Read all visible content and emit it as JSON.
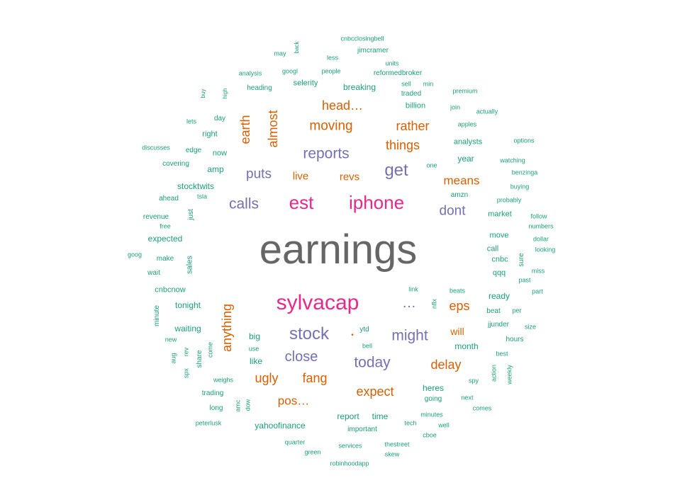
{
  "palette": {
    "gray": "#666666",
    "magenta": "#e7298a",
    "purple": "#7570b3",
    "orange": "#d95f02",
    "teal": "#1b9e77"
  },
  "words": [
    {
      "text": "earnings",
      "color": "gray"
    },
    {
      "text": "sylvacap",
      "color": "magenta"
    },
    {
      "text": "iphone",
      "color": "magenta"
    },
    {
      "text": "est",
      "color": "magenta"
    },
    {
      "text": "stock",
      "color": "purple"
    },
    {
      "text": "get",
      "color": "purple"
    },
    {
      "text": "reports",
      "color": "purple"
    },
    {
      "text": "calls",
      "color": "purple"
    },
    {
      "text": "puts",
      "color": "purple"
    },
    {
      "text": "close",
      "color": "purple"
    },
    {
      "text": "today",
      "color": "purple"
    },
    {
      "text": "might",
      "color": "purple"
    },
    {
      "text": "dont",
      "color": "purple"
    },
    {
      "text": "…",
      "color": "purple"
    },
    {
      "text": "moving",
      "color": "orange"
    },
    {
      "text": "head…",
      "color": "orange"
    },
    {
      "text": "rather",
      "color": "orange"
    },
    {
      "text": "things",
      "color": "orange"
    },
    {
      "text": "means",
      "color": "orange"
    },
    {
      "text": "almost",
      "color": "orange"
    },
    {
      "text": "earth",
      "color": "orange"
    },
    {
      "text": "anything",
      "color": "orange"
    },
    {
      "text": "live",
      "color": "orange"
    },
    {
      "text": "revs",
      "color": "orange"
    },
    {
      "text": "eps",
      "color": "orange"
    },
    {
      "text": "will",
      "color": "orange"
    },
    {
      "text": "delay",
      "color": "orange"
    },
    {
      "text": "expect",
      "color": "orange"
    },
    {
      "text": "ugly",
      "color": "orange"
    },
    {
      "text": "fang",
      "color": "orange"
    },
    {
      "text": "pos…",
      "color": "orange"
    },
    {
      "text": "•",
      "color": "orange"
    },
    {
      "text": "cnbcclosingbell",
      "color": "teal"
    },
    {
      "text": "jimcramer",
      "color": "teal"
    },
    {
      "text": "may",
      "color": "teal"
    },
    {
      "text": "back",
      "color": "teal"
    },
    {
      "text": "less",
      "color": "teal"
    },
    {
      "text": "units",
      "color": "teal"
    },
    {
      "text": "analysis",
      "color": "teal"
    },
    {
      "text": "googl",
      "color": "teal"
    },
    {
      "text": "people",
      "color": "teal"
    },
    {
      "text": "reformedbroker",
      "color": "teal"
    },
    {
      "text": "heading",
      "color": "teal"
    },
    {
      "text": "selerity",
      "color": "teal"
    },
    {
      "text": "breaking",
      "color": "teal"
    },
    {
      "text": "sell",
      "color": "teal"
    },
    {
      "text": "min",
      "color": "teal"
    },
    {
      "text": "buy",
      "color": "teal"
    },
    {
      "text": "high",
      "color": "teal"
    },
    {
      "text": "traded",
      "color": "teal"
    },
    {
      "text": "premium",
      "color": "teal"
    },
    {
      "text": "billion",
      "color": "teal"
    },
    {
      "text": "join",
      "color": "teal"
    },
    {
      "text": "actually",
      "color": "teal"
    },
    {
      "text": "lets",
      "color": "teal"
    },
    {
      "text": "day",
      "color": "teal"
    },
    {
      "text": "apples",
      "color": "teal"
    },
    {
      "text": "right",
      "color": "teal"
    },
    {
      "text": "analysts",
      "color": "teal"
    },
    {
      "text": "options",
      "color": "teal"
    },
    {
      "text": "discusses",
      "color": "teal"
    },
    {
      "text": "edge",
      "color": "teal"
    },
    {
      "text": "now",
      "color": "teal"
    },
    {
      "text": "year",
      "color": "teal"
    },
    {
      "text": "watching",
      "color": "teal"
    },
    {
      "text": "covering",
      "color": "teal"
    },
    {
      "text": "amp",
      "color": "teal"
    },
    {
      "text": "one",
      "color": "teal"
    },
    {
      "text": "benzinga",
      "color": "teal"
    },
    {
      "text": "stocktwits",
      "color": "teal"
    },
    {
      "text": "buying",
      "color": "teal"
    },
    {
      "text": "ahead",
      "color": "teal"
    },
    {
      "text": "tsla",
      "color": "teal"
    },
    {
      "text": "amzn",
      "color": "teal"
    },
    {
      "text": "probably",
      "color": "teal"
    },
    {
      "text": "just",
      "color": "teal"
    },
    {
      "text": "revenue",
      "color": "teal"
    },
    {
      "text": "free",
      "color": "teal"
    },
    {
      "text": "market",
      "color": "teal"
    },
    {
      "text": "follow",
      "color": "teal"
    },
    {
      "text": "numbers",
      "color": "teal"
    },
    {
      "text": "expected",
      "color": "teal"
    },
    {
      "text": "move",
      "color": "teal"
    },
    {
      "text": "dollar",
      "color": "teal"
    },
    {
      "text": "call",
      "color": "teal"
    },
    {
      "text": "looking",
      "color": "teal"
    },
    {
      "text": "goog",
      "color": "teal"
    },
    {
      "text": "make",
      "color": "teal"
    },
    {
      "text": "sales",
      "color": "teal"
    },
    {
      "text": "cnbc",
      "color": "teal"
    },
    {
      "text": "sure",
      "color": "teal"
    },
    {
      "text": "wait",
      "color": "teal"
    },
    {
      "text": "qqq",
      "color": "teal"
    },
    {
      "text": "miss",
      "color": "teal"
    },
    {
      "text": "past",
      "color": "teal"
    },
    {
      "text": "cnbcnow",
      "color": "teal"
    },
    {
      "text": "link",
      "color": "teal"
    },
    {
      "text": "beats",
      "color": "teal"
    },
    {
      "text": "part",
      "color": "teal"
    },
    {
      "text": "ready",
      "color": "teal"
    },
    {
      "text": "tonight",
      "color": "teal"
    },
    {
      "text": "nflx",
      "color": "teal"
    },
    {
      "text": "minute",
      "color": "teal"
    },
    {
      "text": "beat",
      "color": "teal"
    },
    {
      "text": "per",
      "color": "teal"
    },
    {
      "text": "waiting",
      "color": "teal"
    },
    {
      "text": "jjunder",
      "color": "teal"
    },
    {
      "text": "size",
      "color": "teal"
    },
    {
      "text": "big",
      "color": "teal"
    },
    {
      "text": "ytd",
      "color": "teal"
    },
    {
      "text": "new",
      "color": "teal"
    },
    {
      "text": "hours",
      "color": "teal"
    },
    {
      "text": "use",
      "color": "teal"
    },
    {
      "text": "bell",
      "color": "teal"
    },
    {
      "text": "month",
      "color": "teal"
    },
    {
      "text": "aug",
      "color": "teal"
    },
    {
      "text": "rev",
      "color": "teal"
    },
    {
      "text": "share",
      "color": "teal"
    },
    {
      "text": "come",
      "color": "teal"
    },
    {
      "text": "best",
      "color": "teal"
    },
    {
      "text": "like",
      "color": "teal"
    },
    {
      "text": "spx",
      "color": "teal"
    },
    {
      "text": "weekly",
      "color": "teal"
    },
    {
      "text": "action",
      "color": "teal"
    },
    {
      "text": "weighs",
      "color": "teal"
    },
    {
      "text": "spy",
      "color": "teal"
    },
    {
      "text": "heres",
      "color": "teal"
    },
    {
      "text": "trading",
      "color": "teal"
    },
    {
      "text": "amc",
      "color": "teal"
    },
    {
      "text": "going",
      "color": "teal"
    },
    {
      "text": "next",
      "color": "teal"
    },
    {
      "text": "long",
      "color": "teal"
    },
    {
      "text": "dow",
      "color": "teal"
    },
    {
      "text": "comes",
      "color": "teal"
    },
    {
      "text": "report",
      "color": "teal"
    },
    {
      "text": "time",
      "color": "teal"
    },
    {
      "text": "minutes",
      "color": "teal"
    },
    {
      "text": "peterlusk",
      "color": "teal"
    },
    {
      "text": "yahoofinance",
      "color": "teal"
    },
    {
      "text": "tech",
      "color": "teal"
    },
    {
      "text": "well",
      "color": "teal"
    },
    {
      "text": "important",
      "color": "teal"
    },
    {
      "text": "cboe",
      "color": "teal"
    },
    {
      "text": "quarter",
      "color": "teal"
    },
    {
      "text": "services",
      "color": "teal"
    },
    {
      "text": "thestreet",
      "color": "teal"
    },
    {
      "text": "green",
      "color": "teal"
    },
    {
      "text": "skew",
      "color": "teal"
    },
    {
      "text": "robinhoodapp",
      "color": "teal"
    }
  ]
}
